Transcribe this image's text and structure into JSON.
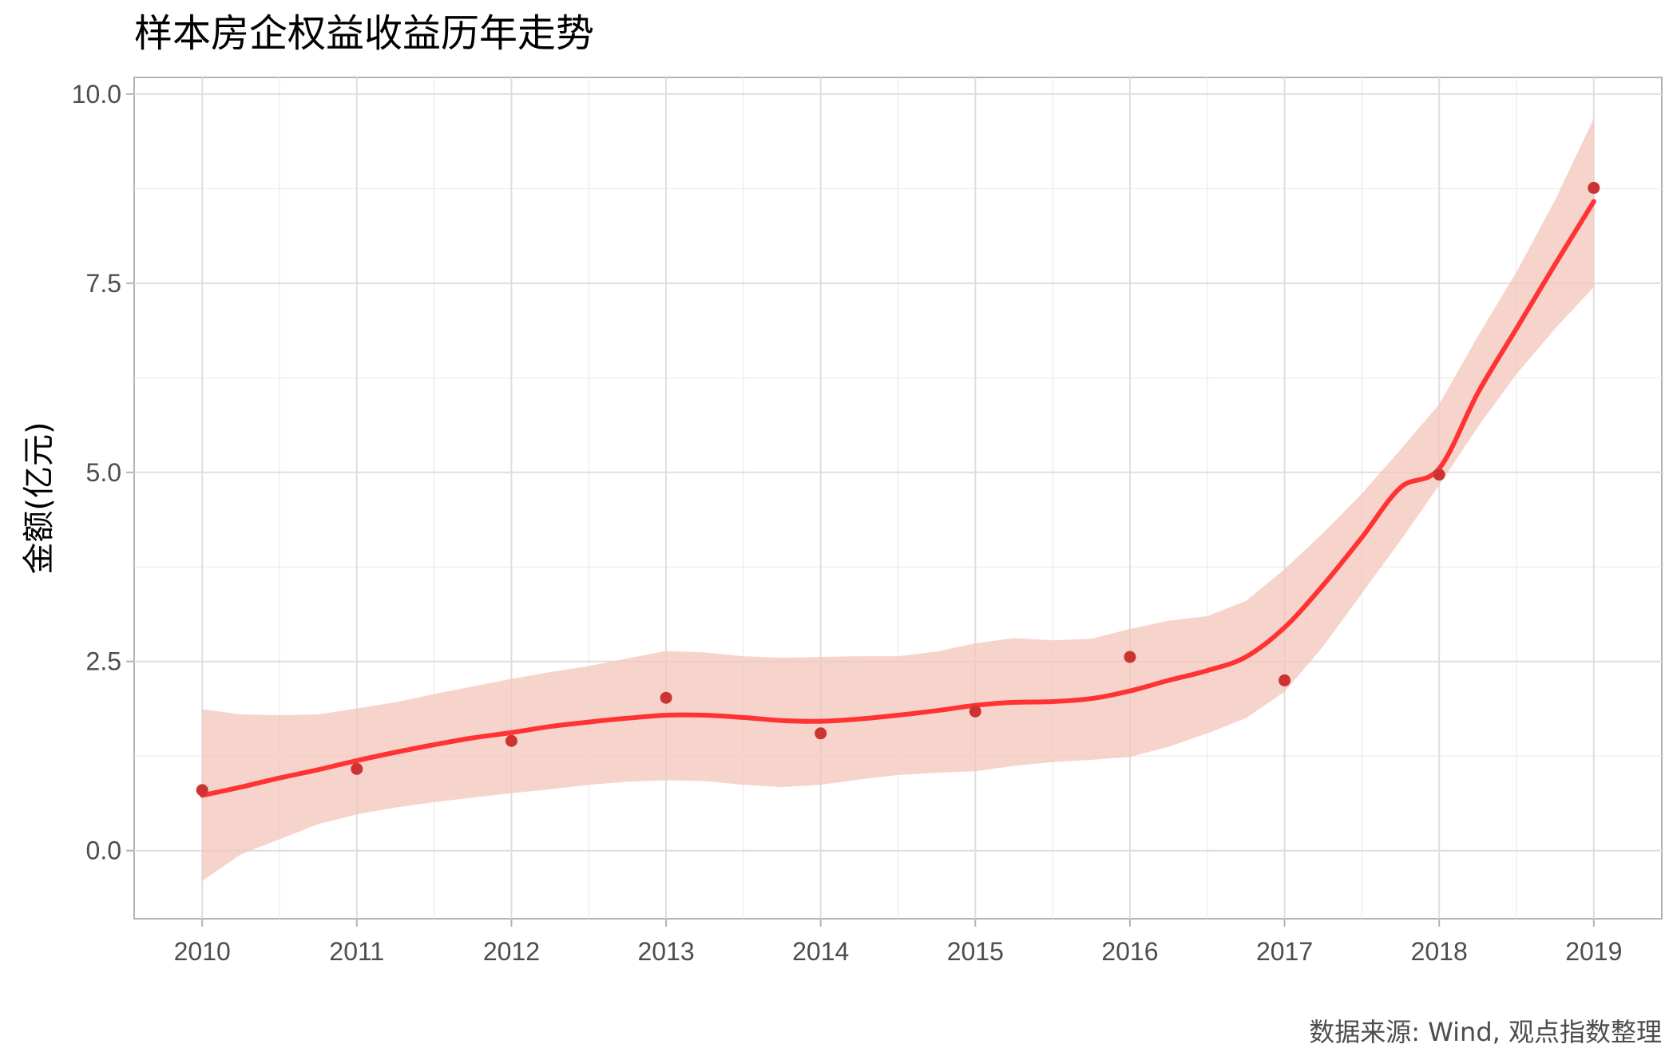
{
  "chart_data": {
    "type": "scatter",
    "title": "样本房企权益收益历年走势",
    "xlabel": "",
    "ylabel": "金额(亿元)",
    "caption": "数据来源: Wind, 观点指数整理",
    "xlim": [
      2009.56,
      2019.44
    ],
    "ylim": [
      -0.9,
      10.22
    ],
    "x_ticks": [
      2010,
      2011,
      2012,
      2013,
      2014,
      2015,
      2016,
      2017,
      2018,
      2019
    ],
    "y_ticks": [
      0.0,
      2.5,
      5.0,
      7.5,
      10.0
    ],
    "y_tick_labels": [
      "0.0",
      "2.5",
      "5.0",
      "7.5",
      "10.0"
    ],
    "grid": true,
    "legend": "none",
    "series": [
      {
        "kind": "points",
        "color": "#cc3333",
        "x": [
          2010,
          2011,
          2012,
          2013,
          2014,
          2015,
          2016,
          2017,
          2018,
          2019
        ],
        "y": [
          0.8,
          1.08,
          1.45,
          2.02,
          1.55,
          1.84,
          2.56,
          2.25,
          4.97,
          8.76
        ]
      },
      {
        "kind": "smooth",
        "color": "#ff3333",
        "x": [
          2010,
          2010.25,
          2010.5,
          2010.75,
          2011,
          2011.25,
          2011.5,
          2011.75,
          2012,
          2012.25,
          2012.5,
          2012.75,
          2013,
          2013.25,
          2013.5,
          2013.75,
          2014,
          2014.25,
          2014.5,
          2014.75,
          2015,
          2015.25,
          2015.5,
          2015.75,
          2016,
          2016.25,
          2016.5,
          2016.75,
          2017,
          2017.25,
          2017.5,
          2017.75,
          2018,
          2018.25,
          2018.5,
          2018.75,
          2019
        ],
        "y": [
          0.73,
          0.84,
          0.96,
          1.07,
          1.19,
          1.3,
          1.4,
          1.49,
          1.56,
          1.64,
          1.7,
          1.75,
          1.79,
          1.79,
          1.76,
          1.72,
          1.71,
          1.74,
          1.79,
          1.85,
          1.92,
          1.96,
          1.97,
          2.01,
          2.11,
          2.25,
          2.38,
          2.56,
          2.95,
          3.51,
          4.14,
          4.8,
          5.05,
          6.05,
          6.9,
          7.75,
          8.58
        ]
      },
      {
        "kind": "band",
        "color": "#f4c6b9",
        "x": [
          2010,
          2010.25,
          2010.5,
          2010.75,
          2011,
          2011.25,
          2011.5,
          2011.75,
          2012,
          2012.25,
          2012.5,
          2012.75,
          2013,
          2013.25,
          2013.5,
          2013.75,
          2014,
          2014.25,
          2014.5,
          2014.75,
          2015,
          2015.25,
          2015.5,
          2015.75,
          2016,
          2016.25,
          2016.5,
          2016.75,
          2017,
          2017.25,
          2017.5,
          2017.75,
          2018,
          2018.25,
          2018.5,
          2018.75,
          2019
        ],
        "lower": [
          -0.4,
          -0.05,
          0.15,
          0.35,
          0.48,
          0.57,
          0.64,
          0.7,
          0.76,
          0.81,
          0.87,
          0.91,
          0.93,
          0.92,
          0.87,
          0.84,
          0.87,
          0.94,
          1.0,
          1.03,
          1.05,
          1.12,
          1.17,
          1.2,
          1.24,
          1.37,
          1.55,
          1.75,
          2.1,
          2.7,
          3.4,
          4.1,
          4.83,
          5.6,
          6.3,
          6.9,
          7.45
        ],
        "upper": [
          1.87,
          1.8,
          1.79,
          1.8,
          1.88,
          1.96,
          2.07,
          2.17,
          2.27,
          2.36,
          2.44,
          2.54,
          2.64,
          2.62,
          2.57,
          2.55,
          2.56,
          2.57,
          2.57,
          2.63,
          2.74,
          2.81,
          2.78,
          2.8,
          2.93,
          3.04,
          3.1,
          3.3,
          3.72,
          4.2,
          4.72,
          5.3,
          5.9,
          6.8,
          7.65,
          8.6,
          9.68
        ]
      }
    ]
  }
}
